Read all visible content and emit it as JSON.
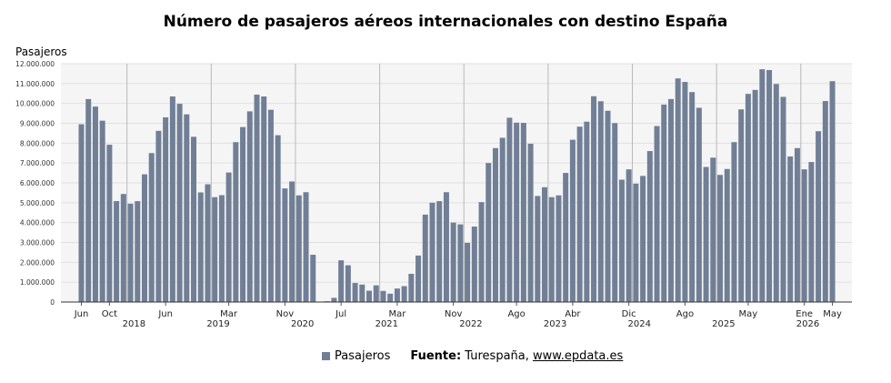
{
  "chart_data": {
    "type": "bar",
    "title": "Número de pasajeros aéreos internacionales con destino España",
    "ylabel": "Pasajeros",
    "ylim": [
      0,
      12000000
    ],
    "ytick_step": 1000000,
    "ytick_labels": [
      "0",
      "1.000.000",
      "2.000.000",
      "3.000.000",
      "4.000.000",
      "5.000.000",
      "6.000.000",
      "7.000.000",
      "8.000.000",
      "9.000.000",
      "10.000.000",
      "11.000.000",
      "12.000.000"
    ],
    "grid": true,
    "legend": "bottom",
    "bar_color": "#717f96",
    "series": [
      {
        "name": "Pasajeros",
        "values": [
          8950000,
          10220000,
          9840000,
          9130000,
          7920000,
          5080000,
          5440000,
          4950000,
          5080000,
          6430000,
          7500000,
          8620000,
          9300000,
          10350000,
          9980000,
          9450000,
          8320000,
          5520000,
          5930000,
          5280000,
          5380000,
          6520000,
          8050000,
          8810000,
          9600000,
          10440000,
          10350000,
          9680000,
          8400000,
          5720000,
          6070000,
          5370000,
          5530000,
          2380000,
          20000,
          40000,
          210000,
          2100000,
          1850000,
          960000,
          880000,
          570000,
          840000,
          560000,
          420000,
          680000,
          800000,
          1420000,
          2340000,
          4400000,
          5000000,
          5080000,
          5530000,
          4000000,
          3910000,
          2980000,
          3800000,
          5030000,
          7000000,
          7750000,
          8270000,
          9280000,
          9030000,
          9020000,
          7970000,
          5340000,
          5780000,
          5280000,
          5370000,
          6500000,
          8170000,
          8830000,
          9080000,
          10360000,
          10110000,
          9630000,
          9010000,
          6160000,
          6680000,
          5960000,
          6350000,
          7600000,
          8860000,
          9940000,
          10220000,
          11260000,
          11080000,
          10570000,
          9780000,
          6800000,
          7270000,
          6400000,
          6700000,
          8050000,
          9700000,
          10480000,
          10680000,
          11720000,
          11680000,
          10980000,
          10330000,
          7330000,
          7750000,
          6680000,
          7050000,
          8600000,
          10120000,
          11120000
        ]
      }
    ],
    "x_tick_labels": [
      {
        "label": "Jun",
        "at": 0
      },
      {
        "label": "Oct",
        "at": 4
      },
      {
        "label": "Jun",
        "at": 12
      },
      {
        "label": "Mar",
        "at": 21
      },
      {
        "label": "Nov",
        "at": 29
      },
      {
        "label": "Jul",
        "at": 37
      },
      {
        "label": "Mar",
        "at": 45
      },
      {
        "label": "Nov",
        "at": 53
      },
      {
        "label": "Ago",
        "at": 62
      },
      {
        "label": "Abr",
        "at": 70
      },
      {
        "label": "Dic",
        "at": 78
      },
      {
        "label": "Ago",
        "at": 86
      },
      {
        "label": "May",
        "at": 95
      },
      {
        "label": "Ene",
        "at": 103
      },
      {
        "label": "May",
        "at": 107
      }
    ],
    "year_labels": [
      {
        "label": "2018",
        "at": 7.5
      },
      {
        "label": "2019",
        "at": 19.5
      },
      {
        "label": "2020",
        "at": 31.5
      },
      {
        "label": "2021",
        "at": 43.5
      },
      {
        "label": "2022",
        "at": 55.5
      },
      {
        "label": "2023",
        "at": 67.5
      },
      {
        "label": "2024",
        "at": 79.5
      },
      {
        "label": "2025",
        "at": 91.5
      },
      {
        "label": "2026",
        "at": 103.5
      }
    ],
    "year_boundaries": [
      7,
      19,
      31,
      43,
      55,
      67,
      79,
      91,
      103
    ]
  },
  "legend": {
    "series_label": "Pasajeros",
    "source_prefix": "Fuente:",
    "source_org": "Turespaña,",
    "source_link": "www.epdata.es"
  }
}
